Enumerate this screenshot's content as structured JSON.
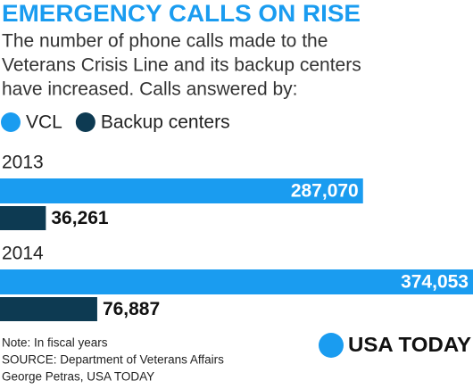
{
  "chart_data": {
    "type": "bar",
    "orientation": "horizontal",
    "title": "EMERGENCY CALLS ON RISE",
    "subtitle": [
      "The number of phone calls made to the",
      "Veterans Crisis Line and its backup centers",
      "have increased. Calls answered by:"
    ],
    "categories": [
      "2013",
      "2014"
    ],
    "series": [
      {
        "name": "VCL",
        "color": "#1a9cf0",
        "values": [
          287070,
          374053
        ],
        "value_labels": [
          "287,070",
          "374,053"
        ]
      },
      {
        "name": "Backup centers",
        "color": "#0d3a52",
        "values": [
          36261,
          76887
        ],
        "value_labels": [
          "36,261",
          "76,887"
        ]
      }
    ],
    "note": "Note: In fiscal years",
    "source": "SOURCE:  Department of Veterans Affairs",
    "credit": "George Petras, USA TODAY",
    "logo": "USA TODAY",
    "logo_color": "#1a9cf0"
  }
}
